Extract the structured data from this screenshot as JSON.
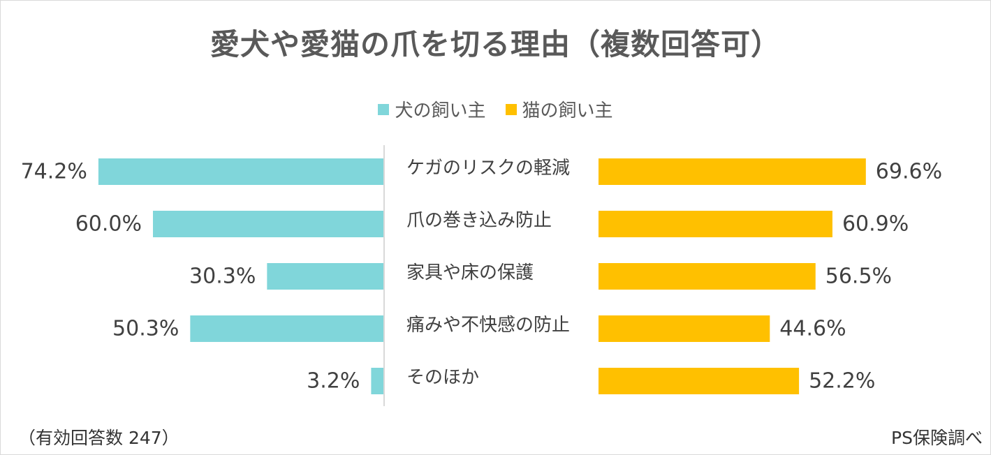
{
  "title": "愛犬や愛猫の爪を切る理由（複数回答可）",
  "legend": {
    "dog_label": "犬の飼い主",
    "cat_label": "猫の飼い主"
  },
  "footer": {
    "sample_note": "（有効回答数 247）",
    "source": "PS保険調べ"
  },
  "colors": {
    "dog": "#80D6DA",
    "cat": "#FFC000"
  },
  "chart_data": {
    "type": "bar",
    "title": "愛犬や愛猫の爪を切る理由（複数回答可）",
    "categories": [
      "ケガのリスクの軽減",
      "爪の巻き込み防止",
      "家具や床の保護",
      "痛みや不快感の防止",
      "そのほか"
    ],
    "series": [
      {
        "name": "犬の飼い主",
        "values": [
          74.2,
          60.0,
          30.3,
          50.3,
          3.2
        ],
        "labels": [
          "74.2%",
          "60.0%",
          "30.3%",
          "50.3%",
          "3.2%"
        ]
      },
      {
        "name": "猫の飼い主",
        "values": [
          69.6,
          60.9,
          56.5,
          44.6,
          52.2
        ],
        "labels": [
          "69.6%",
          "60.9%",
          "56.5%",
          "44.6%",
          "52.2%"
        ]
      }
    ],
    "xlim": [
      0,
      100
    ],
    "grid": false,
    "legend_position": "top-center"
  }
}
